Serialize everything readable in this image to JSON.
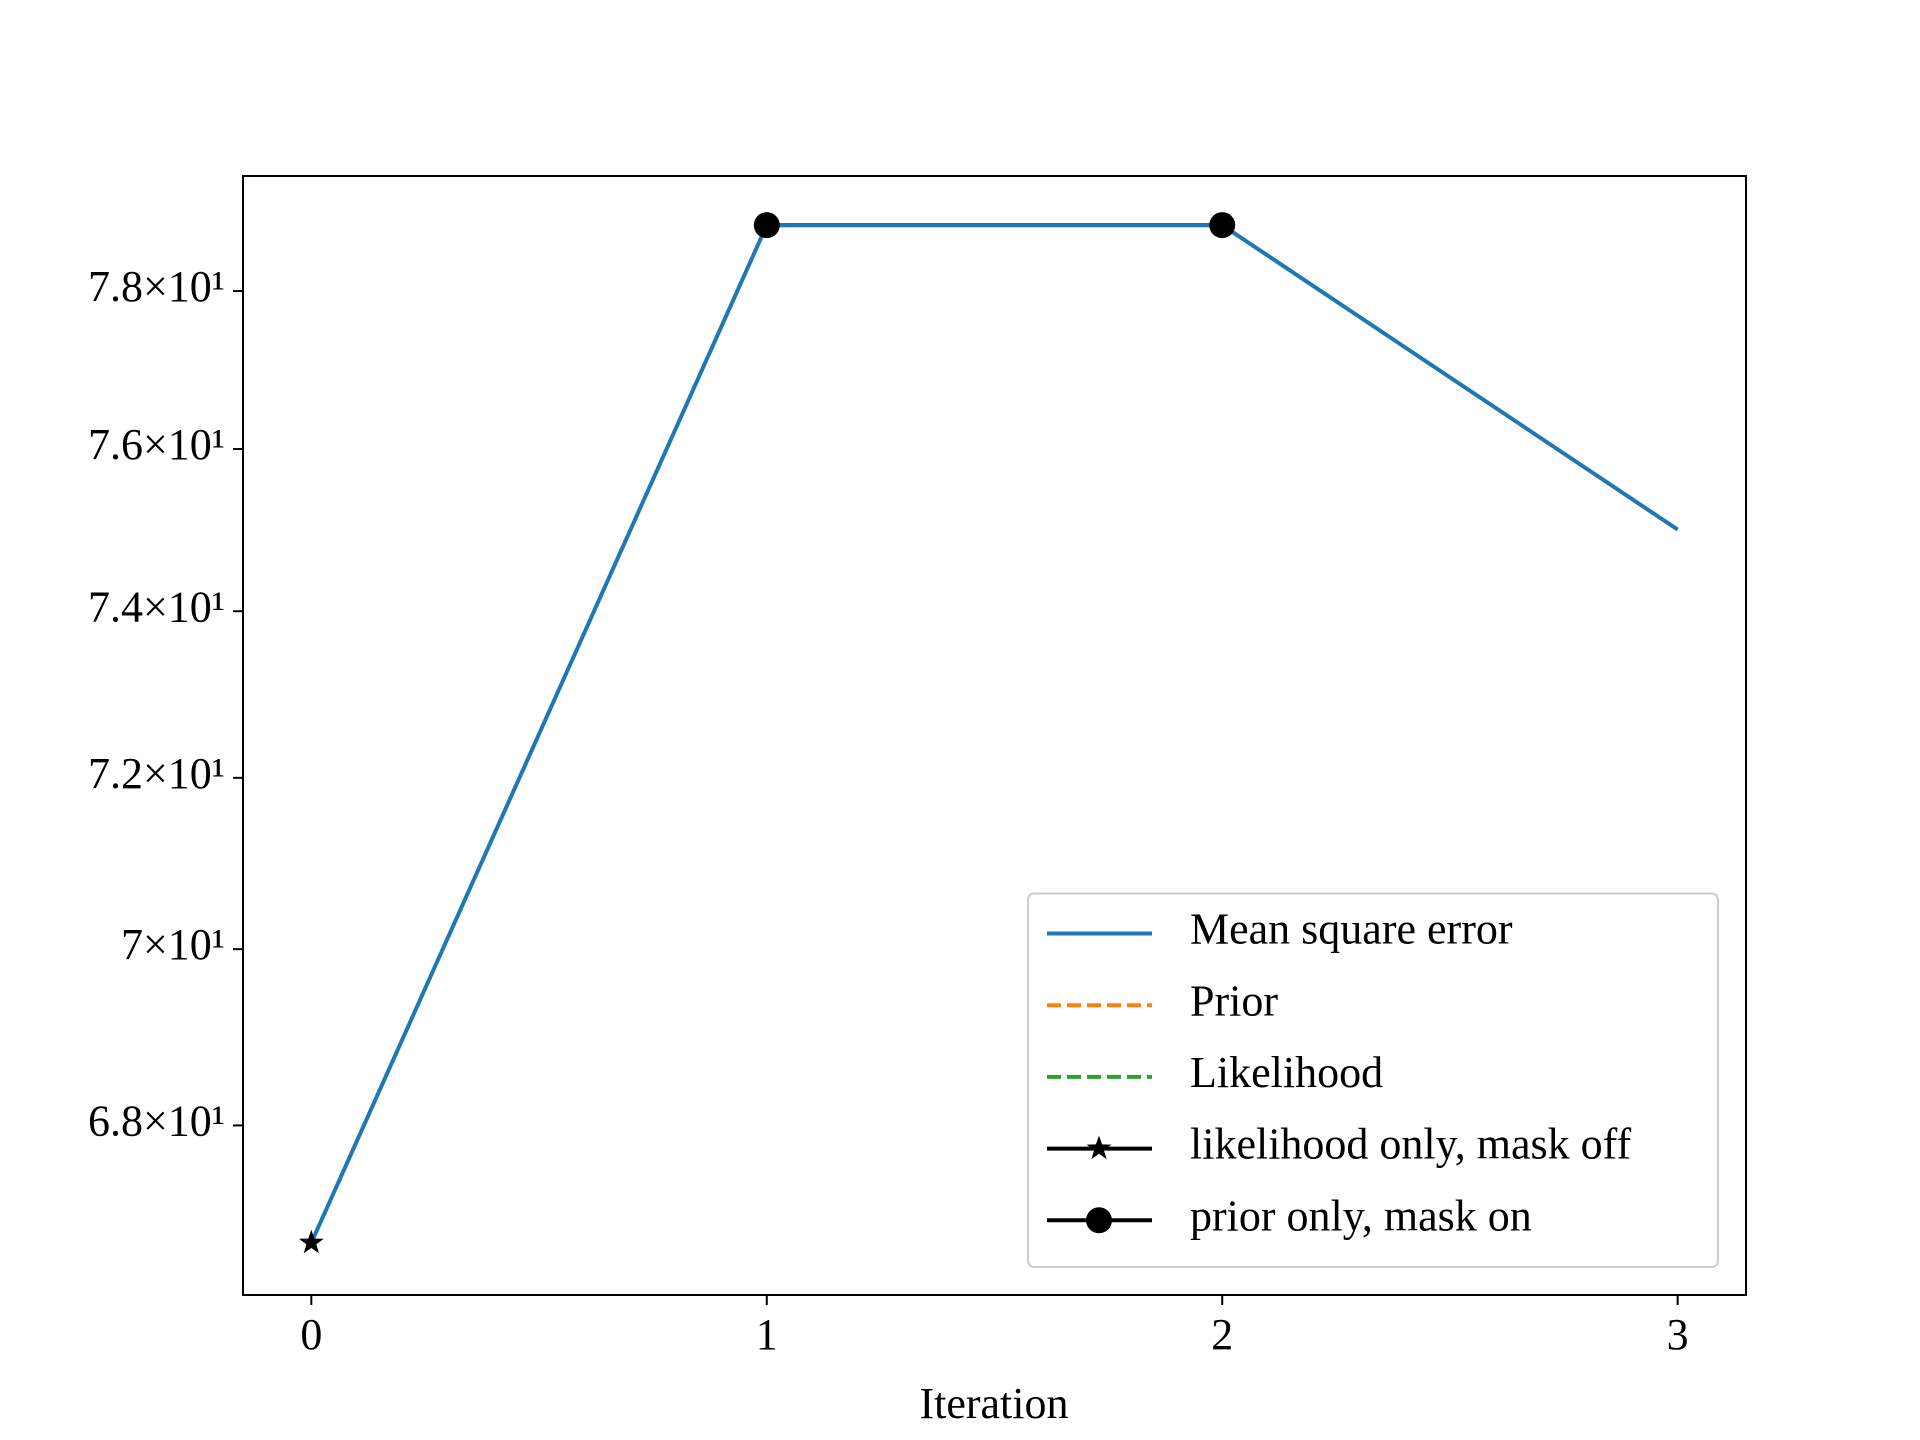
{
  "chart_data": {
    "type": "line",
    "xlabel": "Iteration",
    "x": [
      0,
      1,
      2,
      3
    ],
    "xlim": [
      -0.15,
      3.15
    ],
    "xticks": [
      0,
      1,
      2,
      3
    ],
    "yscale": "log",
    "ylim": [
      66.13,
      79.49
    ],
    "yticks": [
      {
        "value": 68,
        "label": "6.8×10¹"
      },
      {
        "value": 70,
        "label": "7×10¹"
      },
      {
        "value": 72,
        "label": "7.2×10¹"
      },
      {
        "value": 74,
        "label": "7.4×10¹"
      },
      {
        "value": 76,
        "label": "7.6×10¹"
      },
      {
        "value": 78,
        "label": "7.8×10¹"
      }
    ],
    "grid": false,
    "legend": "lower right",
    "series": [
      {
        "name": "Mean square error",
        "color": "#1f77b4",
        "linestyle": "solid",
        "marker": "none",
        "values": [
          66.7,
          78.85,
          78.85,
          75.0
        ]
      },
      {
        "name": "Prior",
        "color": "#ff7f0e",
        "linestyle": "dashed",
        "marker": "none",
        "values": [
          null,
          null,
          null,
          null
        ]
      },
      {
        "name": "Likelihood",
        "color": "#2ca02c",
        "linestyle": "dashed",
        "marker": "none",
        "values": [
          null,
          null,
          null,
          null
        ]
      },
      {
        "name": "likelihood only, mask off",
        "color": "#000000",
        "linestyle": "solid",
        "marker": "star",
        "values": [
          66.7,
          null,
          null,
          null
        ]
      },
      {
        "name": "prior only, mask on",
        "color": "#000000",
        "linestyle": "solid",
        "marker": "circle",
        "values": [
          null,
          78.85,
          78.85,
          null
        ]
      }
    ]
  }
}
